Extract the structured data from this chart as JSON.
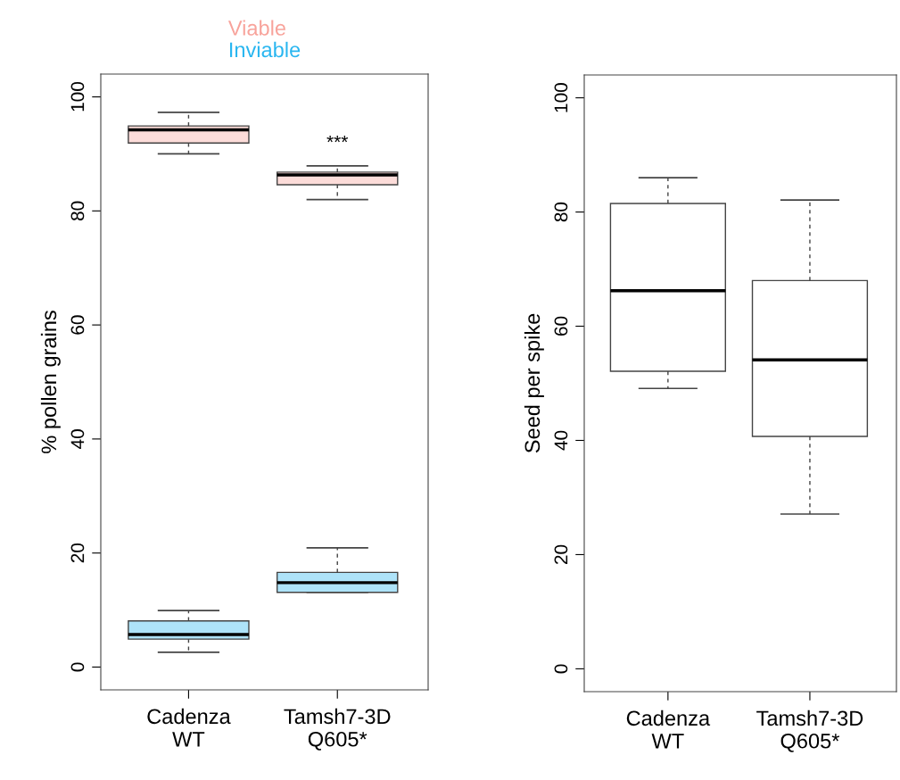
{
  "chart_data": [
    {
      "type": "box",
      "ylabel": "% pollen grains",
      "categories": [
        "Cadenza\nWT",
        "Tamsh7-3D\nQ605*"
      ],
      "ylim": [
        -4,
        104
      ],
      "yticks": [
        0,
        20,
        40,
        60,
        80,
        100
      ],
      "grid": false,
      "legend": "top",
      "series": [
        {
          "name": "Viable",
          "color": "#f8a39b",
          "boxes": [
            {
              "low": 90.0,
              "q1": 91.9,
              "median": 94.2,
              "q3": 94.9,
              "high": 97.3
            },
            {
              "low": 82.0,
              "q1": 84.6,
              "median": 86.3,
              "q3": 86.8,
              "high": 87.9
            }
          ]
        },
        {
          "name": "Inviable",
          "color": "#29b6f0",
          "boxes": [
            {
              "low": 2.6,
              "q1": 4.9,
              "median": 5.7,
              "q3": 8.1,
              "high": 9.9
            },
            {
              "low": 13.1,
              "q1": 13.1,
              "median": 14.8,
              "q3": 16.6,
              "high": 20.9
            }
          ]
        }
      ],
      "annotations": [
        "***"
      ]
    },
    {
      "type": "box",
      "ylabel": "Seed per spike",
      "categories": [
        "Cadenza\nWT",
        "Tamsh7-3D\nQ605*"
      ],
      "ylim": [
        -4,
        104
      ],
      "yticks": [
        0,
        20,
        40,
        60,
        80,
        100
      ],
      "grid": false,
      "boxes": [
        {
          "low": 49.1,
          "q1": 52.1,
          "median": 66.2,
          "q3": 81.5,
          "high": 86.0
        },
        {
          "low": 27.1,
          "q1": 40.7,
          "median": 54.1,
          "q3": 68.0,
          "high": 82.1
        }
      ]
    }
  ]
}
